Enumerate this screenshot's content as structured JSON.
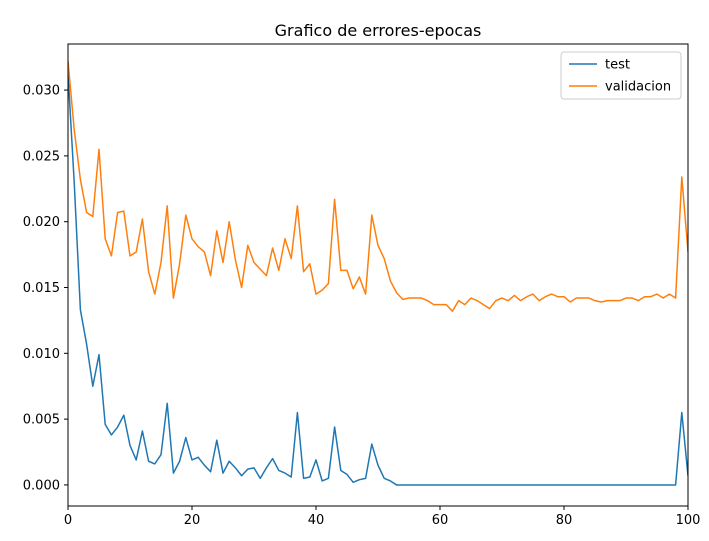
{
  "chart_data": {
    "type": "line",
    "title": "Grafico de errores-epocas",
    "xlabel": "",
    "ylabel": "",
    "xlim": [
      0,
      100
    ],
    "ylim": [
      -0.0016,
      0.0335
    ],
    "x_ticks": [
      0,
      20,
      40,
      60,
      80,
      100
    ],
    "y_ticks": [
      0.0,
      0.005,
      0.01,
      0.015,
      0.02,
      0.025,
      0.03
    ],
    "y_tick_labels": [
      "0.000",
      "0.005",
      "0.010",
      "0.015",
      "0.020",
      "0.025",
      "0.030"
    ],
    "grid": false,
    "legend_position": "top-right",
    "series": [
      {
        "name": "test",
        "color": "#1f77b4",
        "values": [
          0.0313,
          0.023,
          0.0133,
          0.0107,
          0.0075,
          0.0099,
          0.0046,
          0.0038,
          0.0044,
          0.0053,
          0.003,
          0.0019,
          0.0041,
          0.0018,
          0.0016,
          0.0023,
          0.0062,
          0.0009,
          0.0018,
          0.0036,
          0.0019,
          0.0021,
          0.0015,
          0.001,
          0.0034,
          0.0009,
          0.0018,
          0.0013,
          0.0007,
          0.0012,
          0.0013,
          0.0005,
          0.0013,
          0.002,
          0.0011,
          0.0009,
          0.0006,
          0.0055,
          0.0005,
          0.0006,
          0.0019,
          0.0003,
          0.0005,
          0.0044,
          0.0011,
          0.0008,
          0.0002,
          0.0004,
          0.0005,
          0.0031,
          0.0015,
          0.0005,
          0.0003,
          0.0,
          0.0,
          0.0,
          0.0,
          0.0,
          0.0,
          0.0,
          0.0,
          0.0,
          0.0,
          0.0,
          0.0,
          0.0,
          0.0,
          0.0,
          0.0,
          0.0,
          0.0,
          0.0,
          0.0,
          0.0,
          0.0,
          0.0,
          0.0,
          0.0,
          0.0,
          0.0,
          0.0,
          0.0,
          0.0,
          0.0,
          0.0,
          0.0,
          0.0,
          0.0,
          0.0,
          0.0,
          0.0,
          0.0,
          0.0,
          0.0,
          0.0,
          0.0,
          0.0,
          0.0,
          0.0,
          0.0055,
          0.0007
        ]
      },
      {
        "name": "validacion",
        "color": "#ff7f0e",
        "values": [
          0.0322,
          0.027,
          0.0232,
          0.0207,
          0.0204,
          0.0255,
          0.0187,
          0.0174,
          0.0207,
          0.0208,
          0.0174,
          0.0177,
          0.0202,
          0.0162,
          0.0145,
          0.0169,
          0.0212,
          0.0142,
          0.0168,
          0.0205,
          0.0187,
          0.0181,
          0.0177,
          0.0159,
          0.0193,
          0.0169,
          0.02,
          0.0171,
          0.015,
          0.0182,
          0.0169,
          0.0164,
          0.0159,
          0.018,
          0.0163,
          0.0187,
          0.0172,
          0.0212,
          0.0162,
          0.0168,
          0.0145,
          0.0148,
          0.0153,
          0.0217,
          0.0163,
          0.0163,
          0.0149,
          0.0158,
          0.0145,
          0.0205,
          0.0182,
          0.0172,
          0.0155,
          0.0146,
          0.0141,
          0.0142,
          0.0142,
          0.0142,
          0.014,
          0.0137,
          0.0137,
          0.0137,
          0.0132,
          0.014,
          0.0137,
          0.0142,
          0.014,
          0.0137,
          0.0134,
          0.014,
          0.0142,
          0.014,
          0.0144,
          0.014,
          0.0143,
          0.0145,
          0.014,
          0.0143,
          0.0145,
          0.0143,
          0.0143,
          0.0139,
          0.0142,
          0.0142,
          0.0142,
          0.014,
          0.0139,
          0.014,
          0.014,
          0.014,
          0.0142,
          0.0142,
          0.014,
          0.0143,
          0.0143,
          0.0145,
          0.0142,
          0.0145,
          0.0142,
          0.0234,
          0.0177
        ]
      }
    ]
  }
}
